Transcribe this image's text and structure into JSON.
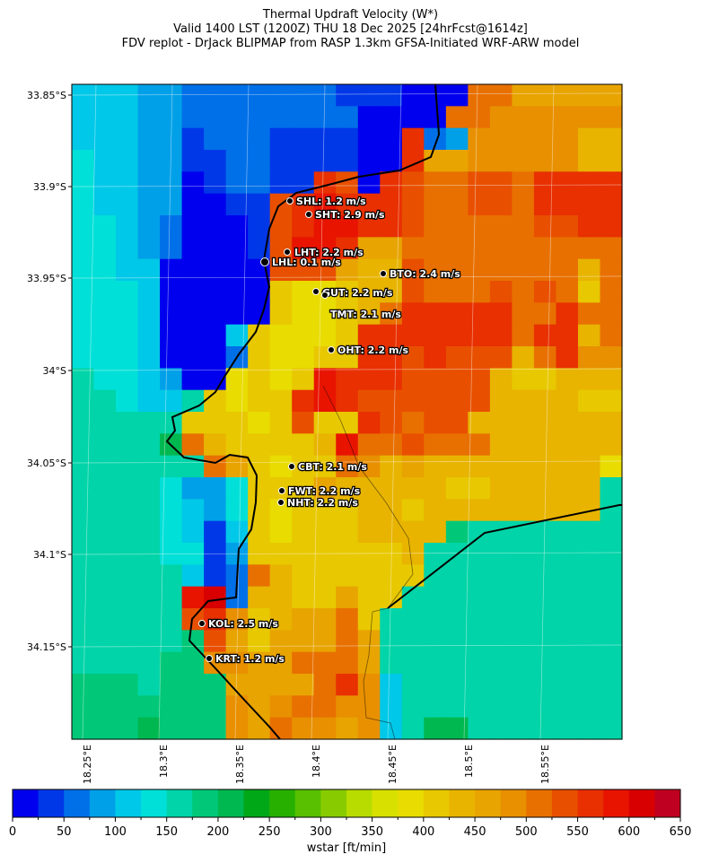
{
  "title_lines": [
    "Thermal Updraft Velocity (W*)",
    "Valid 1400 LST (1200Z) THU 18 Dec 2025 [24hrFcst@1614z]",
    "FDV replot - DrJack BLIPMAP from RASP 1.3km GFSA-Initiated WRF-ARW model"
  ],
  "chart_data": {
    "type": "heatmap",
    "variable": "wstar",
    "colorbar_label": "wstar [ft/min]",
    "colorbar_range": [
      0,
      650
    ],
    "colorbar_step": 25,
    "colorbar_ticks": [
      "0",
      "50",
      "100",
      "150",
      "200",
      "250",
      "300",
      "350",
      "400",
      "450",
      "500",
      "550",
      "600",
      "650"
    ],
    "colors": [
      "#0000ee",
      "#0038e8",
      "#0070e8",
      "#00a0e8",
      "#00c8e8",
      "#00e0d8",
      "#00d4a8",
      "#00c878",
      "#00b850",
      "#00a818",
      "#28b000",
      "#58c000",
      "#88cc00",
      "#b8dc00",
      "#d8e000",
      "#e8dc00",
      "#e8c800",
      "#e8b400",
      "#e8a400",
      "#e89000",
      "#e87000",
      "#e85000",
      "#e83000",
      "#e81400",
      "#d80000",
      "#c00020"
    ],
    "lat_ticks": [
      "33.85°S",
      "33.9°S",
      "33.95°S",
      "34°S",
      "34.05°S",
      "34.1°S",
      "34.15°S"
    ],
    "lon_ticks": [
      "18.25°E",
      "18.3°E",
      "18.35°E",
      "18.4°E",
      "18.45°E",
      "18.5°E",
      "18.55°E"
    ],
    "sites": [
      {
        "label": "SHL: 1.2 m/s"
      },
      {
        "label": "SHT: 2.9 m/s"
      },
      {
        "label": "LHT: 2.2 m/s"
      },
      {
        "label": "LHL: 0.1 m/s"
      },
      {
        "label": "BTO: 2.4 m/s"
      },
      {
        "label": "GUT: 2.2 m/s"
      },
      {
        "label": "TMT: 2.1 m/s"
      },
      {
        "label": "OHT: 2.2 m/s"
      },
      {
        "label": "CBT: 2.1 m/s"
      },
      {
        "label": "FWT: 2.2 m/s"
      },
      {
        "label": "NHT: 2.2 m/s"
      },
      {
        "label": "KOL: 2.5 m/s"
      },
      {
        "label": "KRT: 1.2 m/s"
      }
    ]
  }
}
